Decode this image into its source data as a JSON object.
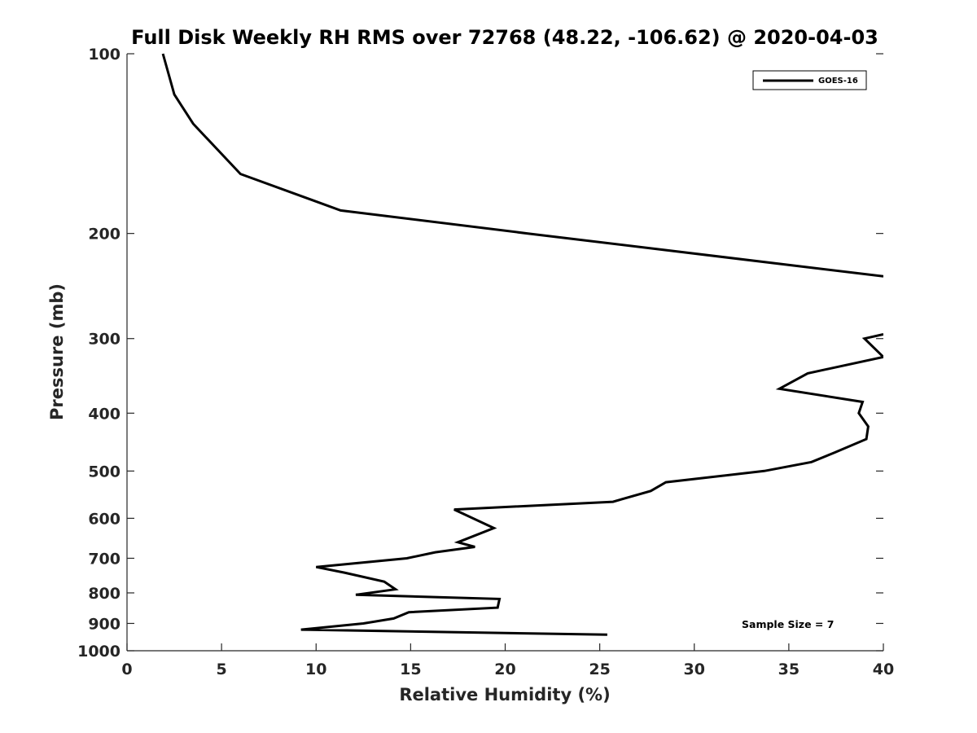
{
  "chart_data": {
    "type": "line",
    "title": "Full Disk Weekly RH RMS over 72768 (48.22, -106.62) @ 2020-04-03",
    "xlabel": "Relative Humidity (%)",
    "ylabel": "Pressure (mb)",
    "xlim": [
      0,
      40
    ],
    "ylim": [
      100,
      1000
    ],
    "y_scale": "log",
    "y_reversed": true,
    "grid": false,
    "x_ticks": [
      "0",
      "5",
      "10",
      "15",
      "20",
      "25",
      "30",
      "35",
      "40"
    ],
    "y_ticks": [
      "100",
      "200",
      "300",
      "400",
      "500",
      "600",
      "700",
      "800",
      "900",
      "1000"
    ],
    "legend_position": "top-right",
    "series": [
      {
        "name": "GOES-16",
        "color": "#000000",
        "points": [
          [
            1.9,
            100
          ],
          [
            2.5,
            117
          ],
          [
            3.5,
            131
          ],
          [
            6.0,
            159
          ],
          [
            11.3,
            183
          ],
          [
            21.2,
            200
          ],
          [
            40.0,
            236
          ],
          [
            null,
            null
          ],
          [
            40.0,
            295
          ],
          [
            39.0,
            300
          ],
          [
            40.0,
            322
          ],
          [
            36.0,
            343
          ],
          [
            34.5,
            364
          ],
          [
            38.9,
            383
          ],
          [
            38.7,
            400
          ],
          [
            39.2,
            421
          ],
          [
            39.1,
            442
          ],
          [
            37.4,
            466
          ],
          [
            36.2,
            483
          ],
          [
            33.7,
            500
          ],
          [
            28.5,
            522
          ],
          [
            27.7,
            540
          ],
          [
            25.7,
            563
          ],
          [
            17.3,
            580
          ],
          [
            19.4,
            623
          ],
          [
            17.5,
            658
          ],
          [
            18.4,
            670
          ],
          [
            16.3,
            684
          ],
          [
            14.8,
            700
          ],
          [
            10.0,
            724
          ],
          [
            11.5,
            740
          ],
          [
            13.6,
            766
          ],
          [
            14.2,
            789
          ],
          [
            12.1,
            806
          ],
          [
            19.7,
            819
          ],
          [
            19.6,
            847
          ],
          [
            14.9,
            862
          ],
          [
            14.1,
            883
          ],
          [
            12.5,
            900
          ],
          [
            9.2,
            922
          ],
          [
            25.4,
            940
          ]
        ]
      }
    ],
    "annotation": "Sample Size = 7"
  }
}
